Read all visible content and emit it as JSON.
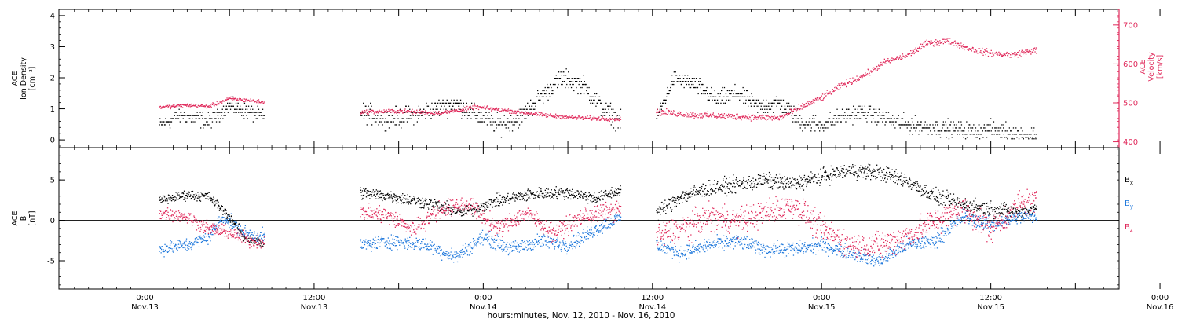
{
  "chart_data": [
    {
      "type": "scatter",
      "panel": "top",
      "left_axis": {
        "label_lines": [
          "ACE",
          "Ion Density",
          "[cm⁻³]"
        ],
        "ylim": [
          -0.25,
          4.2
        ],
        "ticks": [
          0,
          1,
          2,
          3,
          4
        ],
        "tick_labels": [
          "0",
          "1",
          "2",
          "3",
          "4"
        ],
        "color": "#000000"
      },
      "right_axis": {
        "label_lines": [
          "ACE",
          "Velocity",
          "[km/s]"
        ],
        "ylim": [
          385,
          740
        ],
        "ticks": [
          400,
          500,
          600,
          700
        ],
        "tick_labels": [
          "400",
          "500",
          "600",
          "700"
        ],
        "color": "#e0285a"
      },
      "series": [
        {
          "name": "Ion Density",
          "color": "#000000",
          "axis": "left",
          "segments": [
            {
              "t0": 2,
              "t1": 17,
              "knots": [
                [
                  2,
                  0.5
                ],
                [
                  5,
                  0.8
                ],
                [
                  9,
                  0.6
                ],
                [
                  12,
                  1.1
                ],
                [
                  15,
                  0.9
                ],
                [
                  17,
                  0.7
                ]
              ],
              "spread": 0.35
            },
            {
              "t0": 30.5,
              "t1": 67.5,
              "knots": [
                [
                  30.5,
                  0.9
                ],
                [
                  34,
                  0.7
                ],
                [
                  38,
                  0.8
                ],
                [
                  41,
                  1.0
                ],
                [
                  44,
                  1.2
                ],
                [
                  47,
                  0.8
                ],
                [
                  50,
                  0.5
                ],
                [
                  53,
                  0.7
                ],
                [
                  56,
                  1.4
                ],
                [
                  59,
                  2.0
                ],
                [
                  62,
                  1.8
                ],
                [
                  65,
                  1.0
                ],
                [
                  67.5,
                  0.6
                ]
              ],
              "spread": 0.45
            },
            {
              "t0": 72.5,
              "t1": 126.5,
              "knots": [
                [
                  72.5,
                  0.7
                ],
                [
                  75,
                  2.0
                ],
                [
                  78,
                  1.8
                ],
                [
                  81,
                  1.3
                ],
                [
                  84,
                  1.5
                ],
                [
                  87,
                  1.1
                ],
                [
                  90,
                  1.2
                ],
                [
                  93,
                  0.6
                ],
                [
                  96,
                  0.5
                ],
                [
                  99,
                  0.8
                ],
                [
                  102,
                  0.9
                ],
                [
                  105,
                  0.7
                ],
                [
                  108,
                  0.5
                ],
                [
                  111,
                  0.45
                ],
                [
                  114,
                  0.35
                ],
                [
                  117,
                  0.3
                ],
                [
                  120,
                  0.35
                ],
                [
                  123,
                  0.25
                ],
                [
                  126.5,
                  0.15
                ]
              ],
              "spread": 0.4
            }
          ]
        },
        {
          "name": "Velocity",
          "color": "#e0285a",
          "axis": "right",
          "segments": [
            {
              "t0": 2,
              "t1": 17,
              "knots": [
                [
                  2,
                  490
                ],
                [
                  6,
                  495
                ],
                [
                  9,
                  492
                ],
                [
                  12,
                  512
                ],
                [
                  15,
                  507
                ],
                [
                  17,
                  502
                ]
              ],
              "spread": 7
            },
            {
              "t0": 30.5,
              "t1": 67.5,
              "knots": [
                [
                  30.5,
                  478
                ],
                [
                  36,
                  480
                ],
                [
                  42,
                  475
                ],
                [
                  47,
                  490
                ],
                [
                  52,
                  480
                ],
                [
                  58,
                  467
                ],
                [
                  62,
                  462
                ],
                [
                  67.5,
                  460
                ]
              ],
              "spread": 8
            },
            {
              "t0": 72.5,
              "t1": 126.5,
              "knots": [
                [
                  72.5,
                  478
                ],
                [
                  78,
                  470
                ],
                [
                  84,
                  466
                ],
                [
                  90,
                  462
                ],
                [
                  93,
                  490
                ],
                [
                  96,
                  515
                ],
                [
                  99,
                  548
                ],
                [
                  102,
                  572
                ],
                [
                  105,
                  606
                ],
                [
                  108,
                  622
                ],
                [
                  111,
                  655
                ],
                [
                  114,
                  660
                ],
                [
                  117,
                  640
                ],
                [
                  120,
                  628
                ],
                [
                  123,
                  625
                ],
                [
                  126.5,
                  637
                ]
              ],
              "spread": 12
            }
          ]
        }
      ]
    },
    {
      "type": "scatter",
      "panel": "bottom",
      "left_axis": {
        "label_lines": [
          "ACE",
          "B",
          "[nT]"
        ],
        "ylim": [
          -8.5,
          9
        ],
        "ticks": [
          -5,
          0,
          5
        ],
        "tick_labels": [
          "-5",
          "0",
          "5"
        ],
        "color": "#000000"
      },
      "zero_line": true,
      "legend": {
        "position": "right",
        "entries": [
          {
            "label": "B",
            "subscript": "x",
            "color": "#000000"
          },
          {
            "label": "B",
            "subscript": "y",
            "color": "#1e78dc"
          },
          {
            "label": "B",
            "subscript": "z",
            "color": "#e0285a"
          }
        ]
      },
      "series": [
        {
          "name": "Bx",
          "color": "#000000",
          "segments": [
            {
              "t0": 2,
              "t1": 17,
              "knots": [
                [
                  2,
                  2.5
                ],
                [
                  6,
                  3.2
                ],
                [
                  9,
                  3.0
                ],
                [
                  12,
                  0.5
                ],
                [
                  14,
                  -2.0
                ],
                [
                  17,
                  -3.0
                ]
              ],
              "spread": 0.9
            },
            {
              "t0": 30.5,
              "t1": 67.5,
              "knots": [
                [
                  30.5,
                  3.5
                ],
                [
                  35,
                  3.0
                ],
                [
                  40,
                  2.2
                ],
                [
                  45,
                  1.0
                ],
                [
                  50,
                  2.5
                ],
                [
                  55,
                  3.3
                ],
                [
                  60,
                  3.5
                ],
                [
                  64,
                  2.8
                ],
                [
                  67.5,
                  3.8
                ]
              ],
              "spread": 1.1
            },
            {
              "t0": 72.5,
              "t1": 126.5,
              "knots": [
                [
                  72.5,
                  1.0
                ],
                [
                  76,
                  3.0
                ],
                [
                  80,
                  4.0
                ],
                [
                  84,
                  4.5
                ],
                [
                  88,
                  5.0
                ],
                [
                  92,
                  4.5
                ],
                [
                  96,
                  5.5
                ],
                [
                  100,
                  6.2
                ],
                [
                  104,
                  6.0
                ],
                [
                  108,
                  5.0
                ],
                [
                  112,
                  3.0
                ],
                [
                  116,
                  2.0
                ],
                [
                  120,
                  1.5
                ],
                [
                  124,
                  1.0
                ],
                [
                  126.5,
                  1.5
                ]
              ],
              "spread": 1.4
            }
          ]
        },
        {
          "name": "By",
          "color": "#1e78dc",
          "segments": [
            {
              "t0": 2,
              "t1": 17,
              "knots": [
                [
                  2,
                  -3.5
                ],
                [
                  6,
                  -3.0
                ],
                [
                  9,
                  -2.0
                ],
                [
                  11,
                  0.5
                ],
                [
                  14,
                  -1.5
                ],
                [
                  17,
                  -2.0
                ]
              ],
              "spread": 1.2
            },
            {
              "t0": 30.5,
              "t1": 67.5,
              "knots": [
                [
                  30.5,
                  -3.0
                ],
                [
                  35,
                  -2.5
                ],
                [
                  40,
                  -3.0
                ],
                [
                  44,
                  -4.5
                ],
                [
                  48,
                  -2.0
                ],
                [
                  52,
                  -3.5
                ],
                [
                  56,
                  -2.5
                ],
                [
                  60,
                  -3.0
                ],
                [
                  64,
                  -1.0
                ],
                [
                  67.5,
                  0.5
                ]
              ],
              "spread": 1.3
            },
            {
              "t0": 72.5,
              "t1": 126.5,
              "knots": [
                [
                  72.5,
                  -3.0
                ],
                [
                  76,
                  -4.0
                ],
                [
                  80,
                  -3.0
                ],
                [
                  84,
                  -2.5
                ],
                [
                  88,
                  -3.5
                ],
                [
                  92,
                  -3.5
                ],
                [
                  96,
                  -3.0
                ],
                [
                  100,
                  -4.0
                ],
                [
                  104,
                  -5.0
                ],
                [
                  108,
                  -3.0
                ],
                [
                  112,
                  -2.5
                ],
                [
                  116,
                  0.5
                ],
                [
                  120,
                  -0.5
                ],
                [
                  124,
                  0.5
                ],
                [
                  126.5,
                  0.5
                ]
              ],
              "spread": 1.3
            }
          ]
        },
        {
          "name": "Bz",
          "color": "#e0285a",
          "segments": [
            {
              "t0": 2,
              "t1": 17,
              "knots": [
                [
                  2,
                  1.0
                ],
                [
                  6,
                  0.5
                ],
                [
                  9,
                  -1.0
                ],
                [
                  12,
                  -1.5
                ],
                [
                  15,
                  -2.5
                ],
                [
                  17,
                  -2.5
                ]
              ],
              "spread": 1.2
            },
            {
              "t0": 30.5,
              "t1": 67.5,
              "knots": [
                [
                  30.5,
                  1.0
                ],
                [
                  34,
                  0.8
                ],
                [
                  38,
                  -1.0
                ],
                [
                  42,
                  1.5
                ],
                [
                  46,
                  2.0
                ],
                [
                  50,
                  -1.0
                ],
                [
                  54,
                  1.0
                ],
                [
                  58,
                  -1.5
                ],
                [
                  62,
                  0.5
                ],
                [
                  67.5,
                  1.5
                ]
              ],
              "spread": 1.6
            },
            {
              "t0": 72.5,
              "t1": 126.5,
              "knots": [
                [
                  72.5,
                  -2.0
                ],
                [
                  76,
                  -1.0
                ],
                [
                  80,
                  0.5
                ],
                [
                  84,
                  0.0
                ],
                [
                  88,
                  1.0
                ],
                [
                  92,
                  2.0
                ],
                [
                  96,
                  -1.0
                ],
                [
                  100,
                  -3.0
                ],
                [
                  104,
                  -3.0
                ],
                [
                  108,
                  -2.0
                ],
                [
                  112,
                  0.0
                ],
                [
                  116,
                  1.5
                ],
                [
                  120,
                  -1.0
                ],
                [
                  124,
                  2.0
                ],
                [
                  126.5,
                  2.5
                ]
              ],
              "spread": 2.4
            }
          ]
        }
      ]
    }
  ],
  "x_axis": {
    "range_hours": [
      -12.2,
      138.2
    ],
    "ticks": [
      {
        "t": 0,
        "time": "0:00",
        "date": "Nov.13"
      },
      {
        "t": 24,
        "time": "12:00",
        "date": "Nov.13"
      },
      {
        "t": 48,
        "time": "0:00",
        "date": "Nov.14"
      },
      {
        "t": 72,
        "time": "12:00",
        "date": "Nov.14"
      },
      {
        "t": 96,
        "time": "0:00",
        "date": "Nov.15"
      },
      {
        "t": 120,
        "time": "12:00",
        "date": "Nov.15"
      },
      {
        "t": 144,
        "time": "0:00",
        "date": "Nov.16"
      }
    ],
    "title": "hours:minutes, Nov. 12, 2010 - Nov. 16, 2010"
  }
}
